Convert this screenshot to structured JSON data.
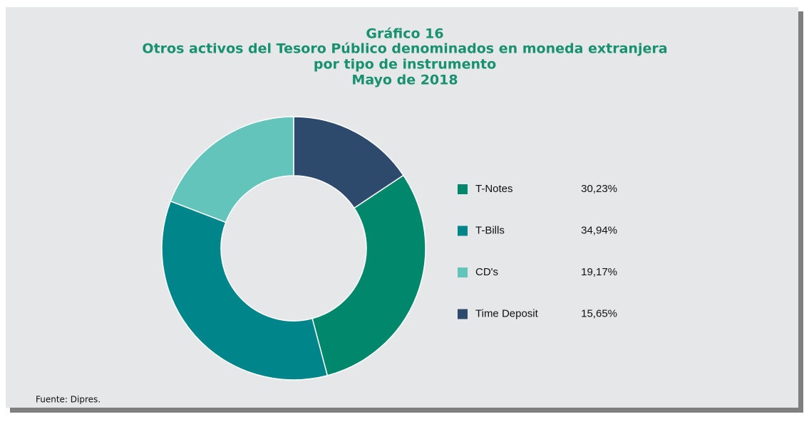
{
  "chart_data": {
    "type": "donut",
    "title": [
      "Gráfico 16",
      "Otros activos del Tesoro Público denominados en moneda extranjera",
      "por tipo de instrumento",
      "Mayo de 2018"
    ],
    "categories": [
      "T-Notes",
      "T-Bills",
      "CD's",
      "Time Deposit"
    ],
    "values": [
      30.23,
      34.94,
      19.17,
      15.65
    ],
    "value_labels": [
      "30,23%",
      "34,94%",
      "19,17%",
      "15,65%"
    ],
    "colors": [
      "#00876c",
      "#00858b",
      "#62c4ba",
      "#2d4a6d"
    ],
    "source": "Fuente: Dipres."
  }
}
